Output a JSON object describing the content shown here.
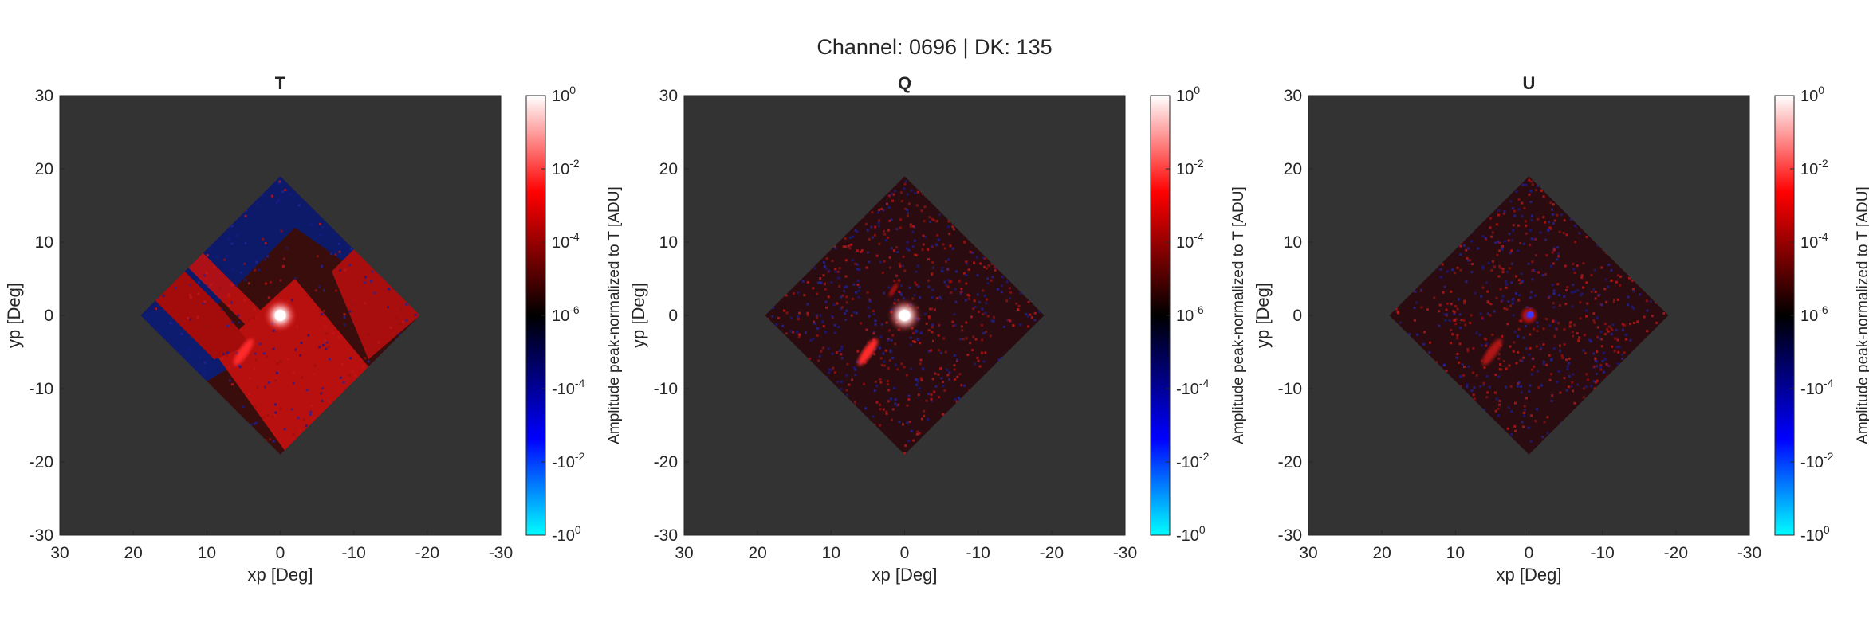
{
  "figure": {
    "suptitle": "Channel: 0696 | DK: 135",
    "colors": {
      "background": "#ffffff",
      "axes_face": "#333333",
      "text": "#262626",
      "positive_map": "#cc1111",
      "negative_map": "#0c1a6e"
    }
  },
  "chart_data": [
    {
      "type": "heatmap",
      "title": "T",
      "xlabel": "xp [Deg]",
      "ylabel": "yp [Deg]",
      "xlim": [
        30,
        -30
      ],
      "ylim": [
        -30,
        30
      ],
      "x_reversed": true,
      "xticks": [
        30,
        20,
        10,
        0,
        -10,
        -20,
        -30
      ],
      "yticks": [
        -30,
        -20,
        -10,
        0,
        10,
        20,
        30
      ],
      "grid": false,
      "data_footprint": "square rotated 45 degrees, vertices near (0,19), (19,0), (0,-19), (-19,0)",
      "features": [
        {
          "name": "main beam",
          "x": 0,
          "y": 0,
          "level": "1e0"
        },
        {
          "name": "sidelobe streak",
          "x": 5,
          "y": -5,
          "level": "~1e-3"
        },
        {
          "name": "positive crosstalk region",
          "description": "red across center band and lower quadrant, about 1e-4 to 1e-3"
        },
        {
          "name": "negative region",
          "description": "blue in upper and left corners, about -1e-4"
        }
      ],
      "colorbar": {
        "label": "Amplitude peak-normalized to T [ADU]",
        "scale": "symmetric log",
        "ticks": [
          "10^0",
          "10^-2",
          "10^-4",
          "10^-6",
          "-10^-4",
          "-10^-2",
          "-10^0"
        ],
        "colors_top_to_bottom": [
          "#ffffff",
          "#ff0000",
          "#000000",
          "#0000ff",
          "#00ffff"
        ]
      }
    },
    {
      "type": "heatmap",
      "title": "Q",
      "xlabel": "xp [Deg]",
      "ylabel": "yp [Deg]",
      "xlim": [
        30,
        -30
      ],
      "ylim": [
        -30,
        30
      ],
      "x_reversed": true,
      "xticks": [
        30,
        20,
        10,
        0,
        -10,
        -20,
        -30
      ],
      "yticks": [
        -30,
        -20,
        -10,
        0,
        10,
        20,
        30
      ],
      "grid": false,
      "data_footprint": "square rotated 45 degrees, vertices near (0,19), (19,0), (0,-19), (-19,0)",
      "features": [
        {
          "name": "main beam",
          "x": 0,
          "y": 0,
          "level": "1e0"
        },
        {
          "name": "sidelobe streak",
          "x": 5,
          "y": -5,
          "level": "~1e-3"
        },
        {
          "name": "background noise",
          "description": "mixed red/blue speckle near ±1e-5"
        }
      ],
      "colorbar": {
        "label": "Amplitude peak-normalized to T [ADU]",
        "scale": "symmetric log",
        "ticks": [
          "10^0",
          "10^-2",
          "10^-4",
          "10^-6",
          "-10^-4",
          "-10^-2",
          "-10^0"
        ],
        "colors_top_to_bottom": [
          "#ffffff",
          "#ff0000",
          "#000000",
          "#0000ff",
          "#00ffff"
        ]
      }
    },
    {
      "type": "heatmap",
      "title": "U",
      "xlabel": "xp [Deg]",
      "ylabel": "yp [Deg]",
      "xlim": [
        30,
        -30
      ],
      "ylim": [
        -30,
        30
      ],
      "x_reversed": true,
      "xticks": [
        30,
        20,
        10,
        0,
        -10,
        -20,
        -30
      ],
      "yticks": [
        -30,
        -20,
        -10,
        0,
        10,
        20,
        30
      ],
      "grid": false,
      "data_footprint": "square rotated 45 degrees, vertices near (0,19), (19,0), (0,-19), (-19,0)",
      "features": [
        {
          "name": "main beam",
          "x": 0,
          "y": 0,
          "level": "mixed ±1e-3"
        },
        {
          "name": "sidelobe streak",
          "x": 5,
          "y": -5,
          "level": "~1e-4"
        },
        {
          "name": "background noise",
          "description": "mixed red/blue speckle near ±1e-5"
        }
      ],
      "colorbar": {
        "label": "Amplitude peak-normalized to T [ADU]",
        "scale": "symmetric log",
        "ticks": [
          "10^0",
          "10^-2",
          "10^-4",
          "10^-6",
          "-10^-4",
          "-10^-2",
          "-10^0"
        ],
        "colors_top_to_bottom": [
          "#ffffff",
          "#ff0000",
          "#000000",
          "#0000ff",
          "#00ffff"
        ]
      }
    }
  ]
}
